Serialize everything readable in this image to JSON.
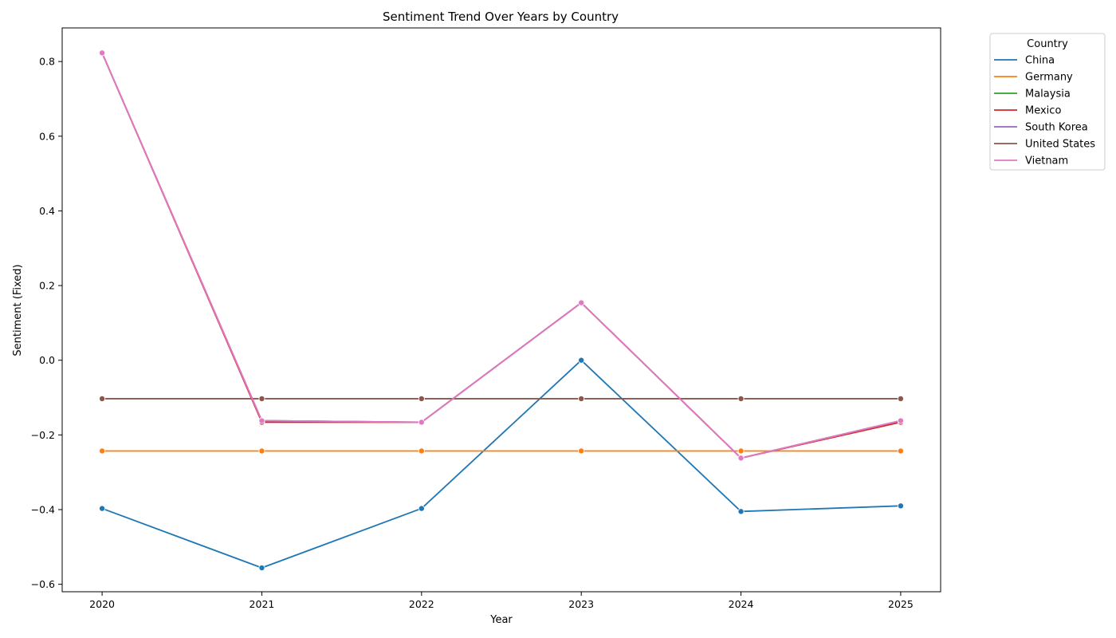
{
  "chart_data": {
    "type": "line",
    "title": "Sentiment Trend Over Years by Country",
    "xlabel": "Year",
    "ylabel": "Sentiment (Fixed)",
    "x": [
      2020,
      2021,
      2022,
      2023,
      2024,
      2025
    ],
    "xlim": [
      2019.75,
      2025.25
    ],
    "ylim": [
      -0.62,
      0.89
    ],
    "yticks": [
      -0.6,
      -0.4,
      -0.2,
      0.0,
      0.2,
      0.4,
      0.6,
      0.8
    ],
    "ytick_labels": [
      "−0.6",
      "−0.4",
      "−0.2",
      "0.0",
      "0.2",
      "0.4",
      "0.6",
      "0.8"
    ],
    "xtick_labels": [
      "2020",
      "2021",
      "2022",
      "2023",
      "2024",
      "2025"
    ],
    "grid": false,
    "markers": true,
    "legend": {
      "title": "Country",
      "placement": "outside-top-right"
    },
    "series": [
      {
        "name": "China",
        "color": "#1f77b4",
        "values": [
          -0.397,
          -0.556,
          -0.397,
          0.0,
          -0.405,
          -0.39
        ]
      },
      {
        "name": "Germany",
        "color": "#ff7f0e",
        "values": [
          -0.243,
          -0.243,
          -0.243,
          -0.243,
          -0.243,
          -0.243
        ]
      },
      {
        "name": "Malaysia",
        "color": "#2ca02c",
        "values": [
          0.823,
          -0.162,
          -0.166,
          0.154,
          -0.262,
          -0.162
        ]
      },
      {
        "name": "Mexico",
        "color": "#d62728",
        "values": [
          0.823,
          -0.166,
          -0.166,
          0.154,
          -0.262,
          -0.166
        ]
      },
      {
        "name": "South Korea",
        "color": "#9467bd",
        "values": [
          0.823,
          -0.162,
          -0.166,
          0.154,
          -0.262,
          -0.162
        ]
      },
      {
        "name": "United States",
        "color": "#8c564b",
        "values": [
          -0.103,
          -0.103,
          -0.103,
          -0.103,
          -0.103,
          -0.103
        ]
      },
      {
        "name": "Vietnam",
        "color": "#e377c2",
        "values": [
          0.823,
          -0.162,
          -0.166,
          0.154,
          -0.262,
          -0.162
        ]
      }
    ]
  }
}
